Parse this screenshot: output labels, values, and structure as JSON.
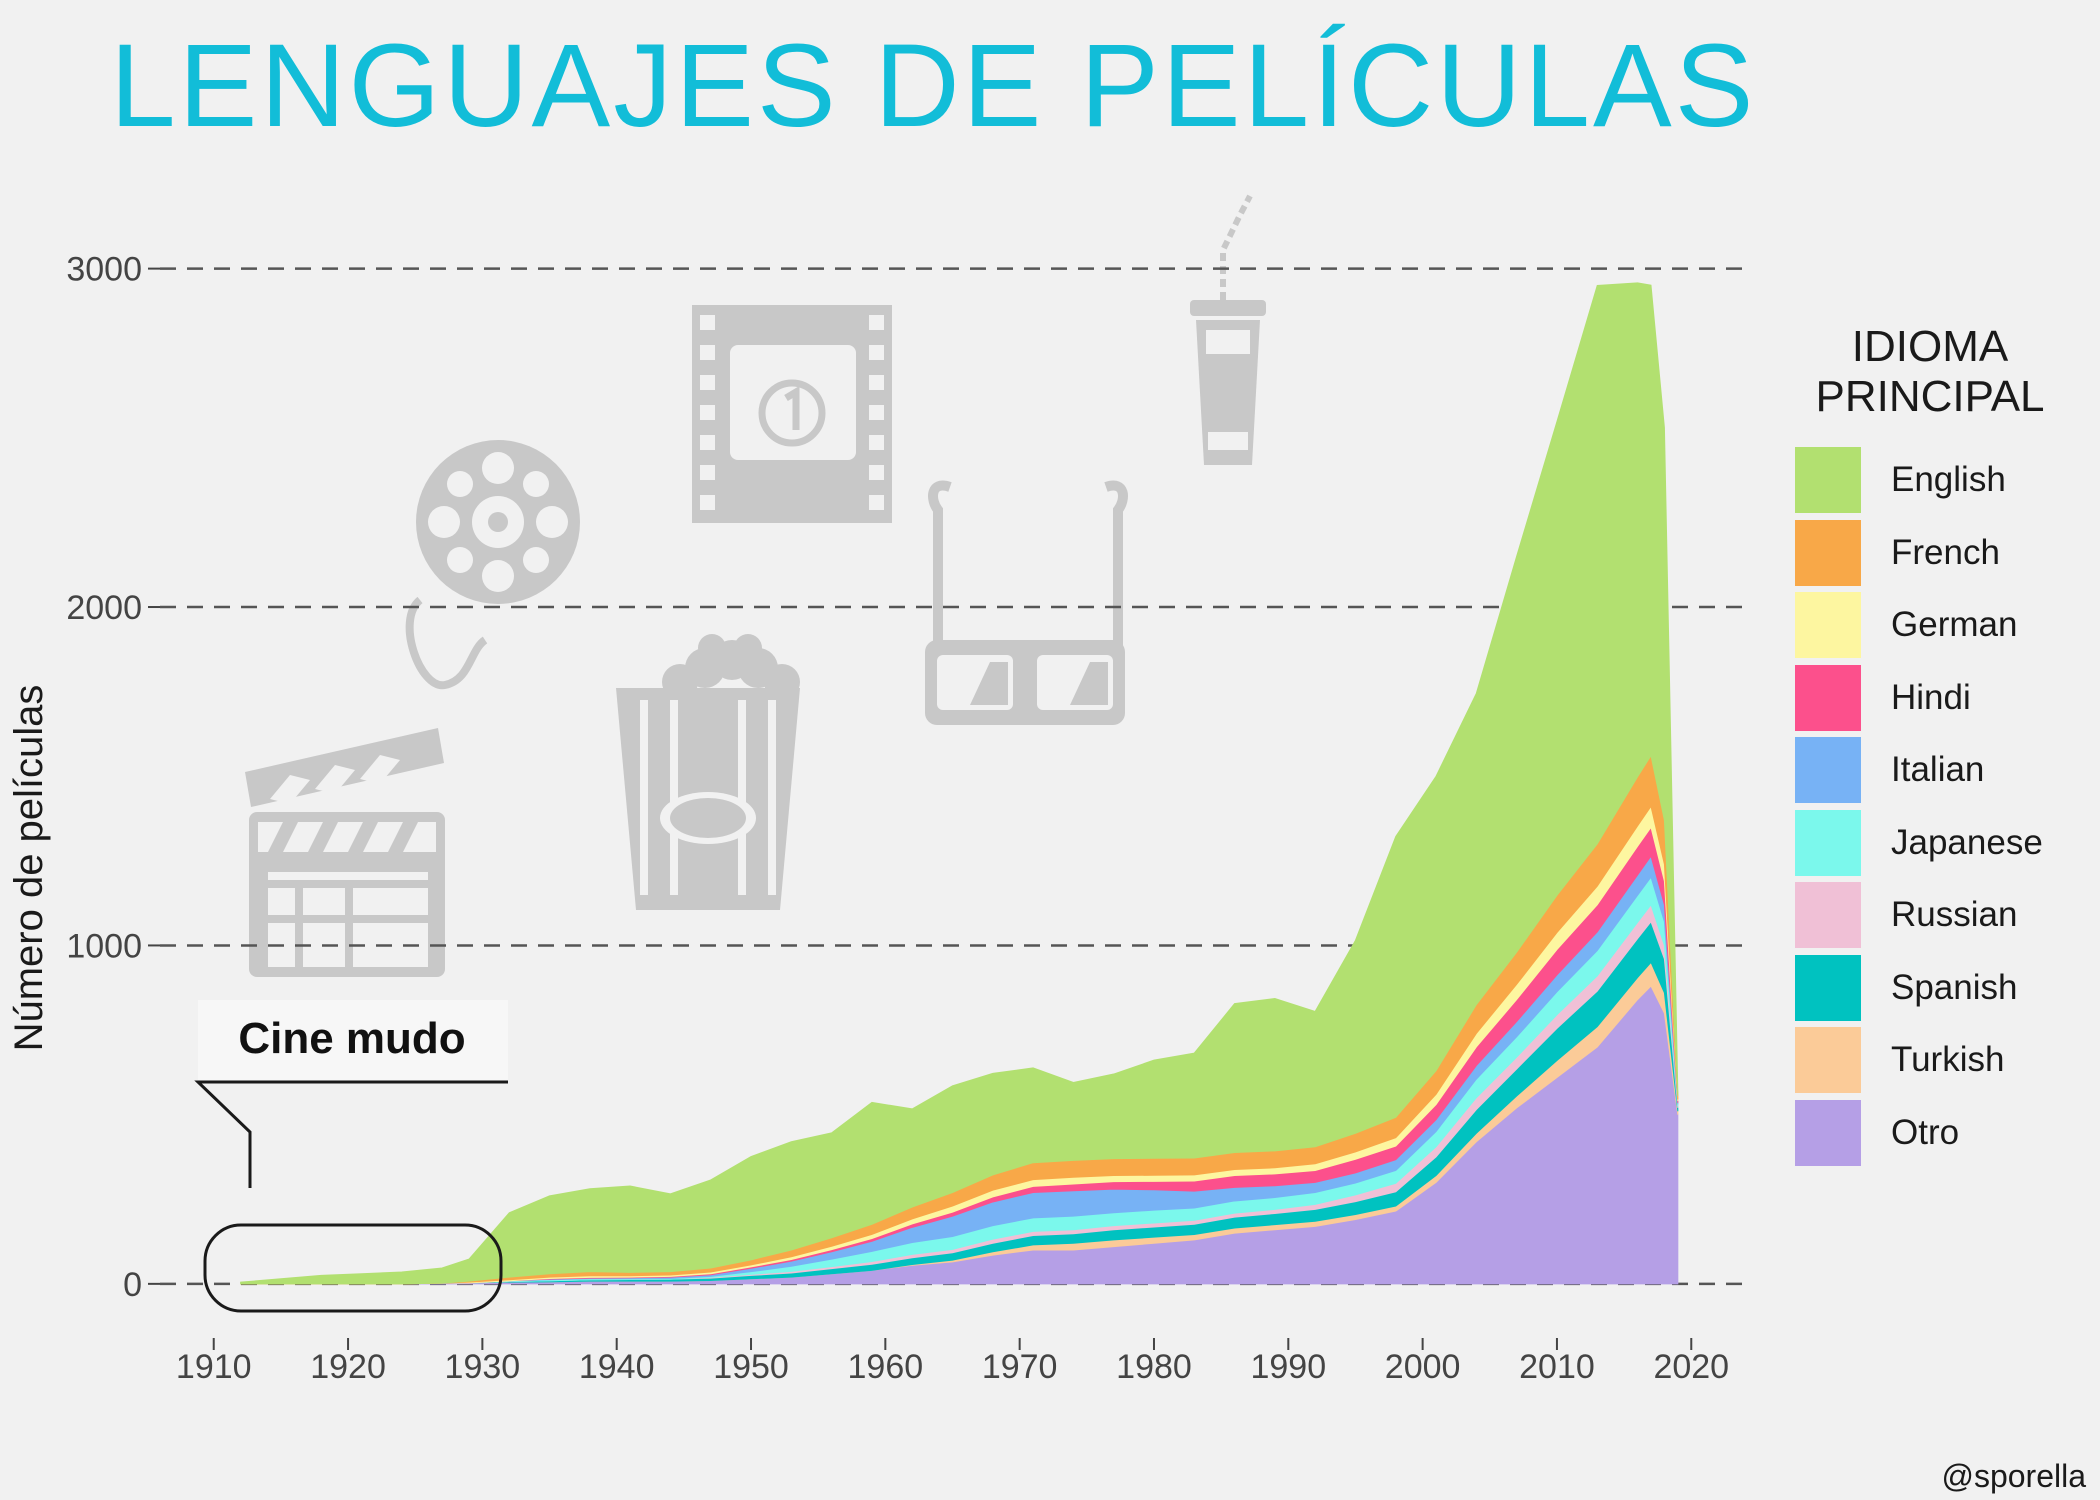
{
  "title": "LENGUAJES DE PELÍCULAS",
  "credit": "@sporella",
  "annotation": {
    "text": "Cine mudo"
  },
  "decor_icons": [
    "clapperboard-icon",
    "film-reel-icon",
    "film-frame-icon",
    "popcorn-icon",
    "3d-glasses-icon",
    "drink-cup-icon"
  ],
  "colors": {
    "background": "#f1f1f1",
    "title": "#12bdd8",
    "icon": "#c8c8c8",
    "grid": "#555555"
  },
  "chart_data": {
    "type": "area",
    "stacked": true,
    "ylabel": "Número de películas",
    "xlabel": "",
    "xlim": [
      1906,
      2024
    ],
    "ylim": [
      -160,
      3120
    ],
    "x_ticks": [
      1910,
      1920,
      1930,
      1940,
      1950,
      1960,
      1970,
      1980,
      1990,
      2000,
      2010,
      2020
    ],
    "y_ticks": [
      0,
      1000,
      2000,
      3000
    ],
    "grid": "horizontal dashed",
    "legend": {
      "title_lines": [
        "IDIOMA",
        "PRINCIPAL"
      ],
      "position": "right"
    },
    "x": [
      1912,
      1915,
      1918,
      1921,
      1924,
      1927,
      1929,
      1932,
      1935,
      1938,
      1941,
      1944,
      1947,
      1950,
      1953,
      1956,
      1959,
      1962,
      1965,
      1968,
      1971,
      1974,
      1977,
      1980,
      1983,
      1986,
      1989,
      1992,
      1995,
      1998,
      2001,
      2004,
      2007,
      2010,
      2013,
      2016,
      2017,
      2018,
      2019
    ],
    "series": [
      {
        "name": "Otro",
        "color": "#b59fe6",
        "values": [
          0,
          0,
          0,
          0,
          0,
          2,
          3,
          5,
          6,
          8,
          8,
          8,
          10,
          15,
          20,
          30,
          40,
          55,
          65,
          85,
          100,
          100,
          110,
          120,
          130,
          150,
          160,
          170,
          190,
          215,
          300,
          420,
          520,
          610,
          700,
          840,
          880,
          800,
          500
        ]
      },
      {
        "name": "Turkish",
        "color": "#fbcb98",
        "values": [
          0,
          0,
          0,
          0,
          0,
          0,
          0,
          0,
          0,
          0,
          0,
          0,
          0,
          0,
          0,
          0,
          0,
          2,
          5,
          10,
          15,
          20,
          20,
          18,
          16,
          15,
          15,
          15,
          15,
          15,
          20,
          25,
          35,
          50,
          60,
          65,
          70,
          60,
          10
        ]
      },
      {
        "name": "Spanish",
        "color": "#00c2c0",
        "values": [
          0,
          0,
          0,
          0,
          0,
          0,
          0,
          2,
          3,
          4,
          5,
          6,
          7,
          10,
          12,
          15,
          18,
          20,
          22,
          25,
          28,
          28,
          30,
          30,
          30,
          32,
          33,
          35,
          38,
          42,
          55,
          70,
          80,
          95,
          105,
          115,
          120,
          100,
          10
        ]
      },
      {
        "name": "Russian",
        "color": "#f0c0d6",
        "values": [
          0,
          0,
          0,
          0,
          0,
          0,
          0,
          0,
          0,
          0,
          0,
          0,
          2,
          3,
          5,
          6,
          8,
          10,
          10,
          12,
          12,
          12,
          12,
          12,
          12,
          12,
          12,
          15,
          20,
          25,
          30,
          35,
          35,
          40,
          45,
          48,
          50,
          40,
          5
        ]
      },
      {
        "name": "Japanese",
        "color": "#7bf8ec",
        "values": [
          0,
          0,
          0,
          0,
          0,
          0,
          0,
          2,
          3,
          3,
          2,
          2,
          3,
          8,
          15,
          22,
          30,
          35,
          38,
          40,
          40,
          40,
          38,
          38,
          36,
          36,
          35,
          35,
          35,
          38,
          45,
          55,
          60,
          68,
          75,
          80,
          82,
          70,
          5
        ]
      },
      {
        "name": "Italian",
        "color": "#77b2f5",
        "values": [
          0,
          0,
          0,
          0,
          0,
          0,
          0,
          0,
          2,
          2,
          3,
          4,
          5,
          10,
          15,
          22,
          30,
          45,
          60,
          70,
          75,
          75,
          70,
          60,
          50,
          40,
          35,
          30,
          30,
          32,
          35,
          40,
          45,
          50,
          55,
          60,
          62,
          50,
          5
        ]
      },
      {
        "name": "Hindi",
        "color": "#fc508c",
        "values": [
          0,
          0,
          0,
          0,
          0,
          0,
          0,
          0,
          2,
          2,
          2,
          2,
          3,
          4,
          5,
          6,
          8,
          10,
          12,
          15,
          18,
          20,
          22,
          25,
          30,
          35,
          35,
          35,
          40,
          40,
          45,
          55,
          65,
          75,
          80,
          85,
          85,
          70,
          5
        ]
      },
      {
        "name": "German",
        "color": "#fdf6a0",
        "values": [
          0,
          0,
          0,
          0,
          0,
          0,
          2,
          3,
          4,
          5,
          4,
          4,
          5,
          6,
          8,
          10,
          12,
          15,
          18,
          20,
          20,
          20,
          18,
          18,
          18,
          18,
          18,
          20,
          22,
          25,
          30,
          40,
          45,
          50,
          55,
          60,
          62,
          50,
          5
        ]
      },
      {
        "name": "French",
        "color": "#f8a848",
        "values": [
          0,
          0,
          0,
          0,
          0,
          0,
          3,
          8,
          10,
          12,
          10,
          10,
          12,
          15,
          20,
          25,
          30,
          35,
          40,
          45,
          50,
          50,
          50,
          50,
          50,
          50,
          50,
          50,
          55,
          60,
          70,
          85,
          95,
          110,
          125,
          145,
          150,
          130,
          10
        ]
      },
      {
        "name": "English",
        "color": "#b2e070",
        "values": [
          5,
          15,
          25,
          30,
          35,
          45,
          65,
          190,
          230,
          245,
          255,
          230,
          260,
          305,
          320,
          310,
          360,
          290,
          315,
          300,
          280,
          230,
          250,
          290,
          310,
          440,
          450,
          400,
          570,
          830,
          870,
          920,
          1170,
          1400,
          1650,
          1460,
          1390,
          1160,
          10
        ]
      }
    ]
  }
}
